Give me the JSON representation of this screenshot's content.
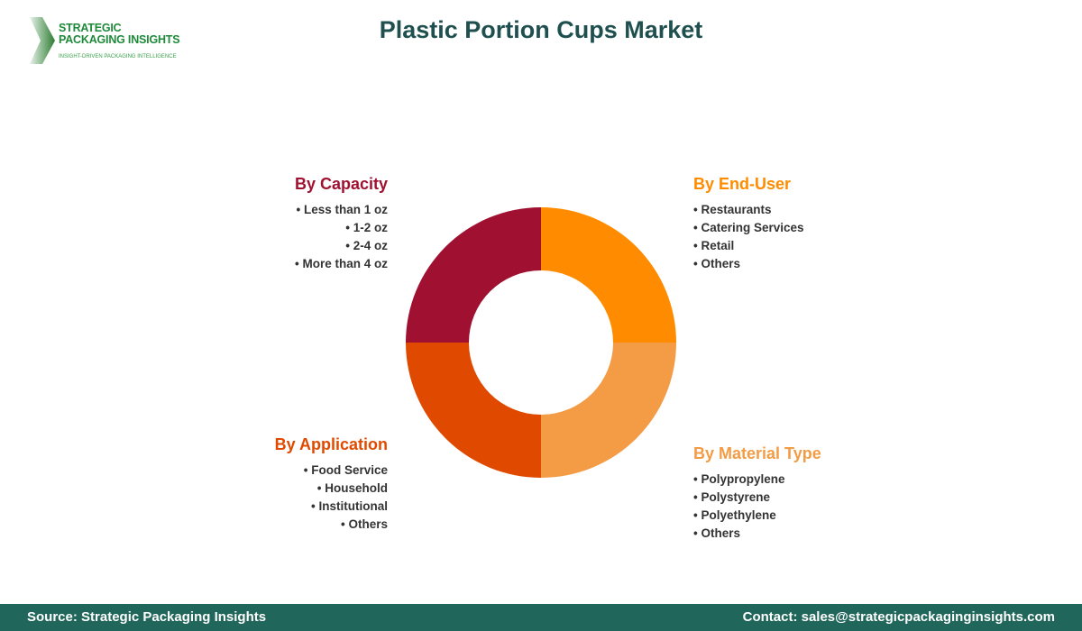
{
  "logo": {
    "line1": "STRATEGIC",
    "line2": "PACKAGING INSIGHTS",
    "tagline": "INSIGHT-DRIVEN PACKAGING INTELLIGENCE"
  },
  "title": "Plastic Portion Cups Market",
  "segments": [
    {
      "name": "By Capacity",
      "color": "#A01030",
      "items": [
        "Less than 1 oz",
        "1-2 oz",
        "2-4 oz",
        "More than 4 oz"
      ]
    },
    {
      "name": "By End-User",
      "color": "#FF8C00",
      "items": [
        "Restaurants",
        "Catering Services",
        "Retail",
        "Others"
      ]
    },
    {
      "name": "By Application",
      "color": "#E04A00",
      "items": [
        "Food Service",
        "Household",
        "Institutional",
        "Others"
      ]
    },
    {
      "name": "By Material Type",
      "color": "#F39C45",
      "items": [
        "Polypropylene",
        "Polystyrene",
        "Polyethylene",
        "Others"
      ]
    }
  ],
  "footer": {
    "source": "Source: Strategic Packaging Insights",
    "contact": "Contact: sales@strategicpackaginginsights.com"
  }
}
